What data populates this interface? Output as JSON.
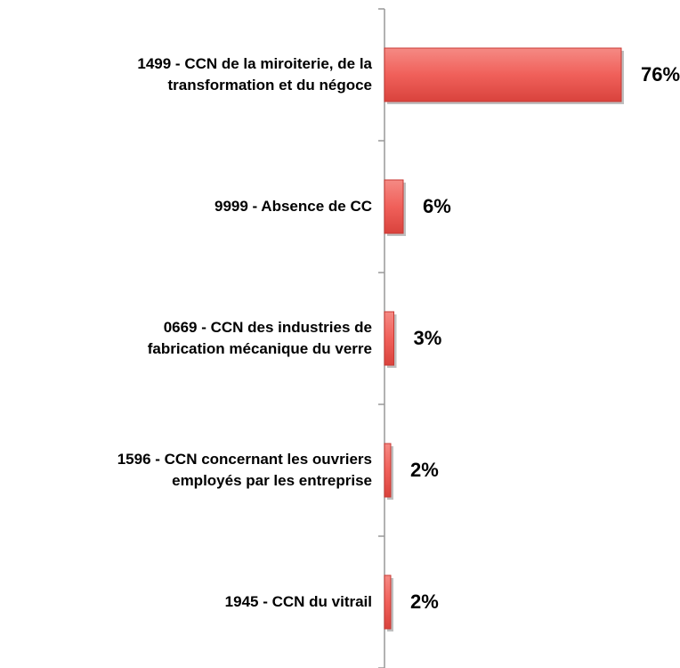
{
  "chart_data": {
    "type": "bar",
    "orientation": "horizontal",
    "categories": [
      "1499 - CCN de la miroiterie, de la\ntransformation et du négoce",
      "9999 - Absence de CC",
      "0669 - CCN des industries de\nfabrication mécanique du verre",
      "1596 - CCN concernant les ouvriers\nemployés par les entreprise",
      "1945 - CCN du vitrail"
    ],
    "values": [
      76,
      6,
      3,
      2,
      2
    ],
    "value_labels": [
      "76%",
      "6%",
      "3%",
      "2%",
      "2%"
    ],
    "color": "#f0605a",
    "xlim": [
      0,
      80
    ]
  }
}
